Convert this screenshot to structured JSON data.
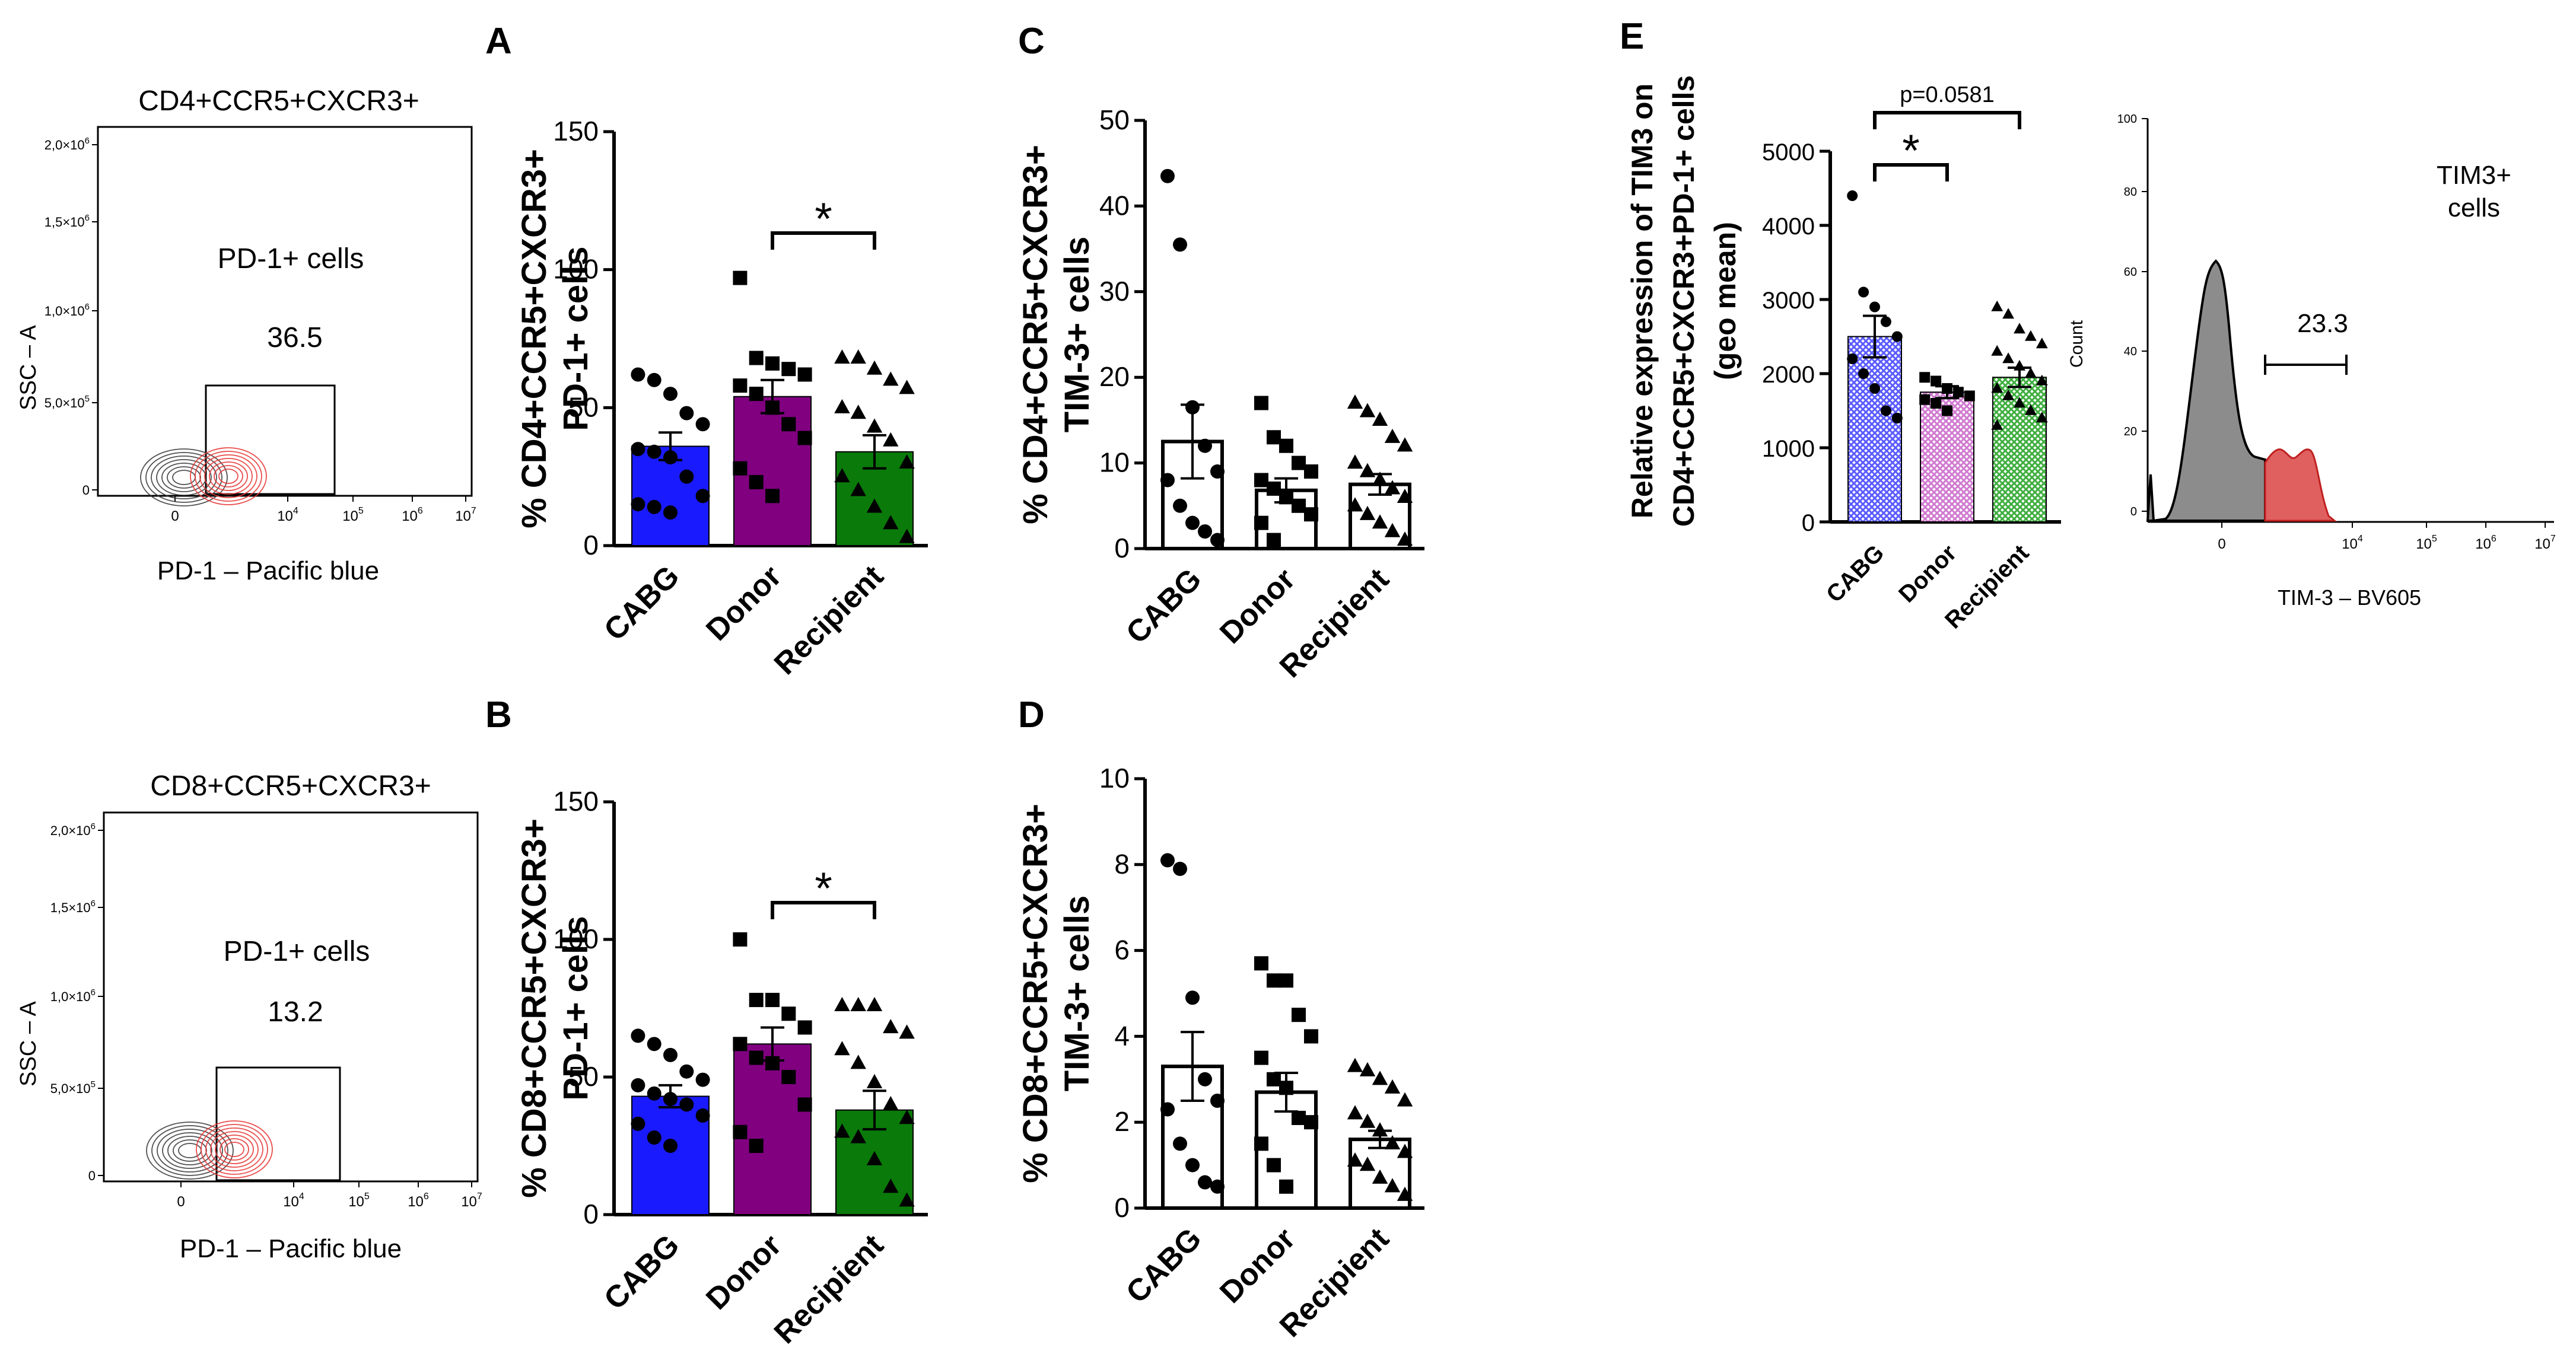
{
  "panel_letters": [
    "A",
    "B",
    "C",
    "D",
    "E"
  ],
  "flow_plots": [
    {
      "title": "CD4+CCR5+CXCR3+",
      "ylabel": "SSC – A",
      "xlabel": "PD-1 – Pacific blue",
      "gate_label": "PD-1+ cells",
      "gate_value": "36.5",
      "y_ticks": [
        "2,0×10",
        "1,5×10",
        "1,0×10",
        "5,0×10",
        "0"
      ],
      "y_ticks_exp": [
        "6",
        "6",
        "6",
        "5",
        ""
      ],
      "x_ticks": [
        "0",
        "10",
        "10",
        "10",
        "10"
      ],
      "x_ticks_exp": [
        "",
        "4",
        "5",
        "6",
        "7"
      ]
    },
    {
      "title": "CD8+CCR5+CXCR3+",
      "ylabel": "SSC – A",
      "xlabel": "PD-1 – Pacific blue",
      "gate_label": "PD-1+ cells",
      "gate_value": "13.2",
      "y_ticks": [
        "2,0×10",
        "1,5×10",
        "1,0×10",
        "5,0×10",
        "0"
      ],
      "y_ticks_exp": [
        "6",
        "6",
        "6",
        "5",
        ""
      ],
      "x_ticks": [
        "0",
        "10",
        "10",
        "10",
        "10"
      ],
      "x_ticks_exp": [
        "",
        "4",
        "5",
        "6",
        "7"
      ]
    }
  ],
  "histogram": {
    "title_lines": [
      "TIM3+",
      "cells"
    ],
    "ylabel": "Count",
    "xlabel": "TIM-3 – BV605",
    "gate_value": "23.3",
    "y_ticks": [
      "100",
      "80",
      "60",
      "40",
      "20",
      "0"
    ],
    "x_ticks": [
      "0",
      "10",
      "10",
      "10",
      "10"
    ],
    "x_ticks_exp": [
      "",
      "4",
      "5",
      "6",
      "7"
    ]
  },
  "colors": {
    "cabg": "#1a1aff",
    "donor": "#800080",
    "recipient": "#0a7a0a",
    "flow_neg": "#333333",
    "flow_pos": "#e83a3a",
    "hist_gray": "#8c8c8c",
    "hist_red": "#e06060",
    "e_cabg": "#5b5bff",
    "e_donor": "#d07ad0",
    "e_recipient": "#3fae3f"
  },
  "chart_data": [
    {
      "panel": "A",
      "type": "bar",
      "categories": [
        "CABG",
        "Donor",
        "Recipient"
      ],
      "ylabel_lines": [
        "% CD4+CCR5+CXCR3+",
        "PD-1+ cells"
      ],
      "ylim": [
        0,
        150
      ],
      "yticks": [
        0,
        50,
        100,
        150
      ],
      "values": [
        36,
        54,
        34
      ],
      "sem": [
        5,
        6,
        6
      ],
      "points": [
        [
          62,
          60,
          55,
          48,
          44,
          35,
          34,
          32,
          25,
          18,
          15,
          14,
          12
        ],
        [
          97,
          68,
          66,
          64,
          62,
          58,
          55,
          50,
          44,
          39,
          28,
          23,
          18
        ],
        [
          68,
          68,
          64,
          60,
          57,
          50,
          48,
          43,
          38,
          30,
          25,
          20,
          14,
          8,
          3
        ]
      ],
      "markers": [
        "circle",
        "square",
        "triangle"
      ],
      "significance": [
        {
          "from": 1,
          "to": 2,
          "label": "*"
        }
      ]
    },
    {
      "panel": "B",
      "type": "bar",
      "categories": [
        "CABG",
        "Donor",
        "Recipient"
      ],
      "ylabel_lines": [
        "% CD8+CCR5+CXCR3+",
        "PD-1+ cells"
      ],
      "ylim": [
        0,
        150
      ],
      "yticks": [
        0,
        50,
        100,
        150
      ],
      "values": [
        43,
        62,
        38
      ],
      "sem": [
        4,
        6,
        7
      ],
      "points": [
        [
          65,
          62,
          58,
          52,
          49,
          47,
          44,
          42,
          40,
          36,
          33,
          28,
          25
        ],
        [
          100,
          78,
          78,
          73,
          68,
          62,
          57,
          55,
          50,
          40,
          30,
          25
        ],
        [
          76,
          76,
          76,
          68,
          66,
          60,
          55,
          48,
          40,
          35,
          30,
          28,
          20,
          10,
          5
        ]
      ],
      "markers": [
        "circle",
        "square",
        "triangle"
      ],
      "significance": [
        {
          "from": 1,
          "to": 2,
          "label": "*"
        }
      ]
    },
    {
      "panel": "C",
      "type": "bar",
      "categories": [
        "CABG",
        "Donor",
        "Recipient"
      ],
      "ylabel_lines": [
        "% CD4+CCR5+CXCR3+",
        "TIM-3+ cells"
      ],
      "ylim": [
        0,
        50
      ],
      "yticks": [
        0,
        10,
        20,
        30,
        40,
        50
      ],
      "values": [
        12.5,
        6.8,
        7.5
      ],
      "sem": [
        4.3,
        1.4,
        1.2
      ],
      "points": [
        [
          43.5,
          35.5,
          16.5,
          12,
          9,
          8,
          5,
          3,
          2,
          1
        ],
        [
          17,
          13,
          12,
          10,
          9,
          8,
          7,
          6,
          5,
          4,
          3,
          1
        ],
        [
          17,
          16,
          15,
          13,
          12,
          10,
          9,
          8,
          7,
          6,
          5,
          4,
          3,
          2,
          1
        ]
      ],
      "markers": [
        "circle",
        "square",
        "triangle"
      ],
      "significance": []
    },
    {
      "panel": "D",
      "type": "bar",
      "categories": [
        "CABG",
        "Donor",
        "Recipient"
      ],
      "ylabel_lines": [
        "% CD8+CCR5+CXCR3+",
        "TIM-3+ cells"
      ],
      "ylim": [
        0,
        10
      ],
      "yticks": [
        0,
        2,
        4,
        6,
        8,
        10
      ],
      "values": [
        3.3,
        2.7,
        1.6
      ],
      "sem": [
        0.8,
        0.45,
        0.2
      ],
      "points": [
        [
          8.1,
          7.9,
          4.9,
          3.0,
          2.5,
          2.3,
          1.5,
          1.0,
          0.6,
          0.5
        ],
        [
          5.7,
          5.3,
          5.3,
          4.5,
          4.0,
          3.5,
          3.0,
          2.8,
          2.1,
          2.0,
          1.5,
          1.0,
          0.5
        ],
        [
          3.3,
          3.2,
          3.0,
          2.8,
          2.5,
          2.2,
          2.0,
          1.8,
          1.5,
          1.3,
          1.1,
          1.0,
          0.7,
          0.5,
          0.3
        ]
      ],
      "markers": [
        "circle",
        "square",
        "triangle"
      ],
      "significance": []
    },
    {
      "panel": "E",
      "type": "bar",
      "categories": [
        "CABG",
        "Donor",
        "Recipient"
      ],
      "ylabel_lines": [
        "Relative expression of TIM3 on",
        "CD4+CCR5+CXCR3+PD-1+ cells",
        "(geo mean)"
      ],
      "ylim": [
        0,
        5000
      ],
      "yticks": [
        0,
        1000,
        2000,
        3000,
        4000,
        5000
      ],
      "values": [
        2500,
        1750,
        1950
      ],
      "sem": [
        280,
        80,
        130
      ],
      "points": [
        [
          4400,
          3100,
          2900,
          2700,
          2500,
          2200,
          2000,
          1800,
          1500,
          1400
        ],
        [
          1950,
          1900,
          1800,
          1750,
          1700,
          1650,
          1600,
          1500
        ],
        [
          2900,
          2800,
          2600,
          2500,
          2400,
          2300,
          2200,
          2100,
          2000,
          1900,
          1800,
          1700,
          1600,
          1500,
          1400,
          1300
        ]
      ],
      "markers": [
        "circle",
        "square",
        "triangle"
      ],
      "significance": [
        {
          "from": 0,
          "to": 1,
          "label": "*"
        },
        {
          "from": 0,
          "to": 2,
          "label": "p=0.0581"
        }
      ]
    }
  ]
}
